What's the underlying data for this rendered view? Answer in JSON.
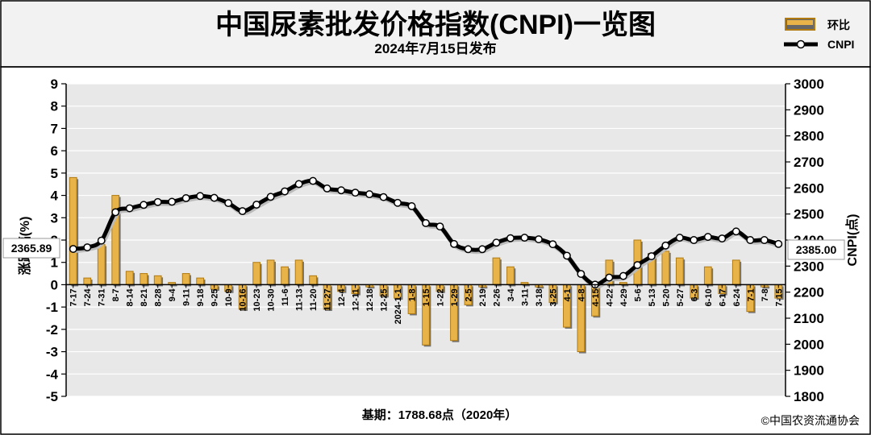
{
  "header": {
    "title": "中国尿素批发价格指数(CNPI)一览图",
    "subtitle": "2024年7月15日发布"
  },
  "footer": {
    "base": "基期：1788.68点（2020年）",
    "copyright": "©中国农资流通协会"
  },
  "colors": {
    "bar_fill": "#e8b44a",
    "bar_stroke": "#b07a10",
    "bar_shadow": "#555555",
    "line": "#000000",
    "plot_bg": "#e8e8e8",
    "header_bg": "#f2f2f2"
  },
  "chart_data": {
    "type": "bar+line",
    "legend": {
      "position": "top-right",
      "items": [
        {
          "label": "环比",
          "kind": "bar"
        },
        {
          "label": "CNPI",
          "kind": "line"
        }
      ]
    },
    "y_left": {
      "label": "涨跌幅(%)",
      "min": -5,
      "max": 9,
      "step": 1,
      "ticks": [
        "-5",
        "-4",
        "-3",
        "-2",
        "-1",
        "0",
        "1",
        "2",
        "3",
        "4",
        "5",
        "6",
        "7",
        "8",
        "9"
      ]
    },
    "y_right": {
      "label": "CNPI(点)",
      "min": 1800,
      "max": 3000,
      "step": 100,
      "ticks": [
        "1800",
        "1900",
        "2000",
        "2100",
        "2200",
        "2300",
        "2400",
        "2500",
        "2600",
        "2700",
        "2800",
        "2900",
        "3000"
      ]
    },
    "grid": true,
    "start_annotation": "2365.89",
    "end_annotation": "2385.00",
    "categories": [
      "7-17",
      "7-24",
      "7-31",
      "8-7",
      "8-14",
      "8-21",
      "8-28",
      "9-4",
      "9-11",
      "9-18",
      "9-25",
      "10-9",
      "10-16",
      "10-23",
      "10-30",
      "11-6",
      "11-13",
      "11-20",
      "11-27",
      "12-4",
      "12-11",
      "12-18",
      "12-25",
      "2024-1-1",
      "1-8",
      "1-15",
      "1-22",
      "1-29",
      "2-5",
      "2-19",
      "2-26",
      "3-4",
      "3-11",
      "3-18",
      "3-25",
      "4-1",
      "4-8",
      "4-15",
      "4-22",
      "4-29",
      "5-6",
      "5-13",
      "5-20",
      "5-27",
      "6-3",
      "6-10",
      "6-17",
      "6-24",
      "7-1",
      "7-8",
      "7-15"
    ],
    "series": [
      {
        "name": "环比",
        "type": "bar",
        "axis": "left",
        "values": [
          4.8,
          0.3,
          1.8,
          4.0,
          0.6,
          0.5,
          0.4,
          0.1,
          0.5,
          0.3,
          -0.2,
          -0.3,
          -1.1,
          1.0,
          1.1,
          0.8,
          1.1,
          0.4,
          -1.1,
          -0.3,
          -0.4,
          -0.1,
          -0.5,
          -0.6,
          -1.3,
          -2.7,
          -0.3,
          -2.5,
          -0.9,
          -0.1,
          1.2,
          0.8,
          0.1,
          -0.1,
          -0.8,
          -1.9,
          -3.0,
          -1.4,
          1.1,
          0.1,
          2.0,
          1.4,
          1.5,
          1.2,
          -0.6,
          0.8,
          -0.4,
          1.1,
          -1.2,
          -0.1,
          -0.6
        ]
      },
      {
        "name": "CNPI",
        "type": "line",
        "axis": "right",
        "values": [
          2365.89,
          2372,
          2398,
          2507,
          2522,
          2535,
          2546,
          2547,
          2561,
          2569,
          2562,
          2542,
          2511,
          2536,
          2566,
          2587,
          2615,
          2627,
          2598,
          2591,
          2582,
          2576,
          2565,
          2543,
          2530,
          2465,
          2452,
          2385,
          2365,
          2365,
          2390,
          2407,
          2409,
          2403,
          2384,
          2340,
          2270,
          2229,
          2256,
          2262,
          2304,
          2338,
          2379,
          2409,
          2400,
          2412,
          2406,
          2433,
          2400,
          2400,
          2385.0
        ]
      }
    ]
  }
}
